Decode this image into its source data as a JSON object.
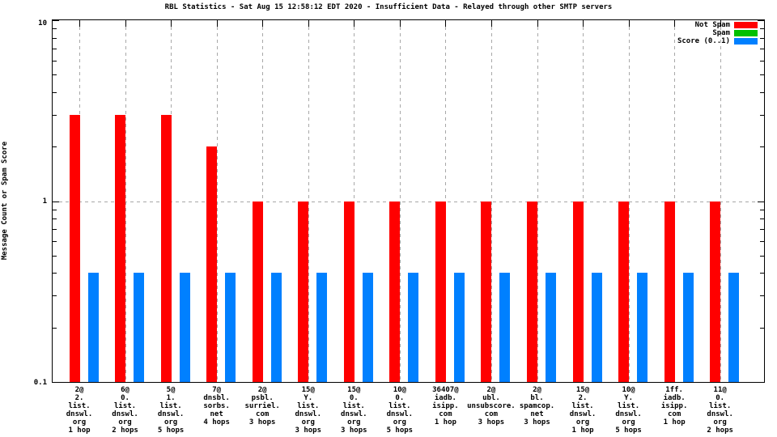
{
  "title": "RBL Statistics - Sat Aug 15 12:58:12 EDT 2020 - Insufficient Data - Relayed through other SMTP servers",
  "y_axis": {
    "label": "Message Count or Spam Score",
    "tick_labels": [
      "10",
      "1",
      "0.1"
    ],
    "scale": "log"
  },
  "legend": [
    {
      "label": "Not Spam",
      "color": "#ff0000"
    },
    {
      "label": "Spam",
      "color": "#00c000"
    },
    {
      "label": "Score (0..1)",
      "color": "#0080ff"
    }
  ],
  "chart_data": {
    "type": "bar",
    "title": "RBL Statistics - Sat Aug 15 12:58:12 EDT 2020 - Insufficient Data - Relayed through other SMTP servers",
    "ylabel": "Message Count or Spam Score",
    "yscale": "log",
    "ylim": [
      0.1,
      10
    ],
    "grid": "y1-dashed-and-x-dashed",
    "legend_position": "top-right-inside",
    "categories": [
      [
        "2@",
        "2.",
        "list.",
        "dnswl.",
        "org",
        "1 hop"
      ],
      [
        "6@",
        "0.",
        "list.",
        "dnswl.",
        "org",
        "2 hops"
      ],
      [
        "5@",
        "1.",
        "list.",
        "dnswl.",
        "org",
        "5 hops"
      ],
      [
        "7@",
        "dnsbl.",
        "sorbs.",
        "net",
        "4 hops"
      ],
      [
        "2@",
        "psbl.",
        "surriel.",
        "com",
        "3 hops"
      ],
      [
        "15@",
        "Y.",
        "list.",
        "dnswl.",
        "org",
        "3 hops"
      ],
      [
        "15@",
        "0.",
        "list.",
        "dnswl.",
        "org",
        "3 hops"
      ],
      [
        "10@",
        "0.",
        "list.",
        "dnswl.",
        "org",
        "5 hops"
      ],
      [
        "36407@",
        "iadb.",
        "isipp.",
        "com",
        "1 hop"
      ],
      [
        "2@",
        "ubl.",
        "unsubscore.",
        "com",
        "3 hops"
      ],
      [
        "2@",
        "bl.",
        "spamcop.",
        "net",
        "3 hops"
      ],
      [
        "15@",
        "2.",
        "list.",
        "dnswl.",
        "org",
        "1 hop"
      ],
      [
        "10@",
        "Y.",
        "list.",
        "dnswl.",
        "org",
        "5 hops"
      ],
      [
        "1ff.",
        "iadb.",
        "isipp.",
        "com",
        "1 hop"
      ],
      [
        "11@",
        "0.",
        "list.",
        "dnswl.",
        "org",
        "2 hops"
      ]
    ],
    "series": [
      {
        "name": "Not Spam",
        "color": "#ff0000",
        "values": [
          3,
          3,
          3,
          2,
          1,
          1,
          1,
          1,
          1,
          1,
          1,
          1,
          1,
          1,
          1
        ]
      },
      {
        "name": "Spam",
        "color": "#00c000",
        "values": [
          0,
          0,
          0,
          0,
          0,
          0,
          0,
          0,
          0,
          0,
          0,
          0,
          0,
          0,
          0
        ]
      },
      {
        "name": "Score (0..1)",
        "color": "#0080ff",
        "values": [
          0.4,
          0.4,
          0.4,
          0.4,
          0.4,
          0.4,
          0.4,
          0.4,
          0.4,
          0.4,
          0.4,
          0.4,
          0.4,
          0.4,
          0.4
        ]
      }
    ]
  }
}
